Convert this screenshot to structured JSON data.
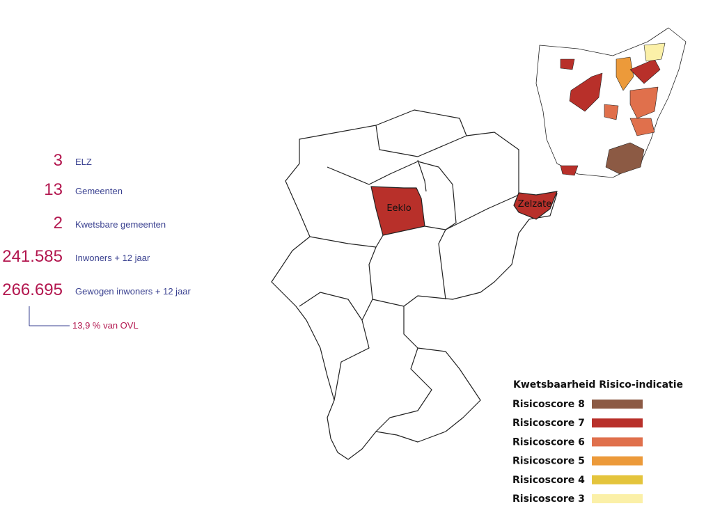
{
  "stats": [
    {
      "value": "3",
      "label": "ELZ"
    },
    {
      "value": "13",
      "label": "Gemeenten"
    },
    {
      "value": "2",
      "label": "Kwetsbare gemeenten"
    },
    {
      "value": "241.585",
      "label": "Inwoners + 12 jaar"
    },
    {
      "value": "266.695",
      "label": "Gewogen inwoners + 12 jaar"
    }
  ],
  "note": "13,9 % van OVL",
  "map": {
    "labels": [
      "Eeklo",
      "Zelzate"
    ]
  },
  "legend": {
    "title": "Kwetsbaarheid Risico-indicatie",
    "items": [
      {
        "label": "Risicoscore 8",
        "color": "#8c5a44"
      },
      {
        "label": "Risicoscore 7",
        "color": "#b8302a"
      },
      {
        "label": "Risicoscore 6",
        "color": "#e0704c"
      },
      {
        "label": "Risicoscore 5",
        "color": "#ec9a3a"
      },
      {
        "label": "Risicoscore 4",
        "color": "#e4c43c"
      },
      {
        "label": "Risicoscore 3",
        "color": "#fbf0a8"
      }
    ]
  }
}
